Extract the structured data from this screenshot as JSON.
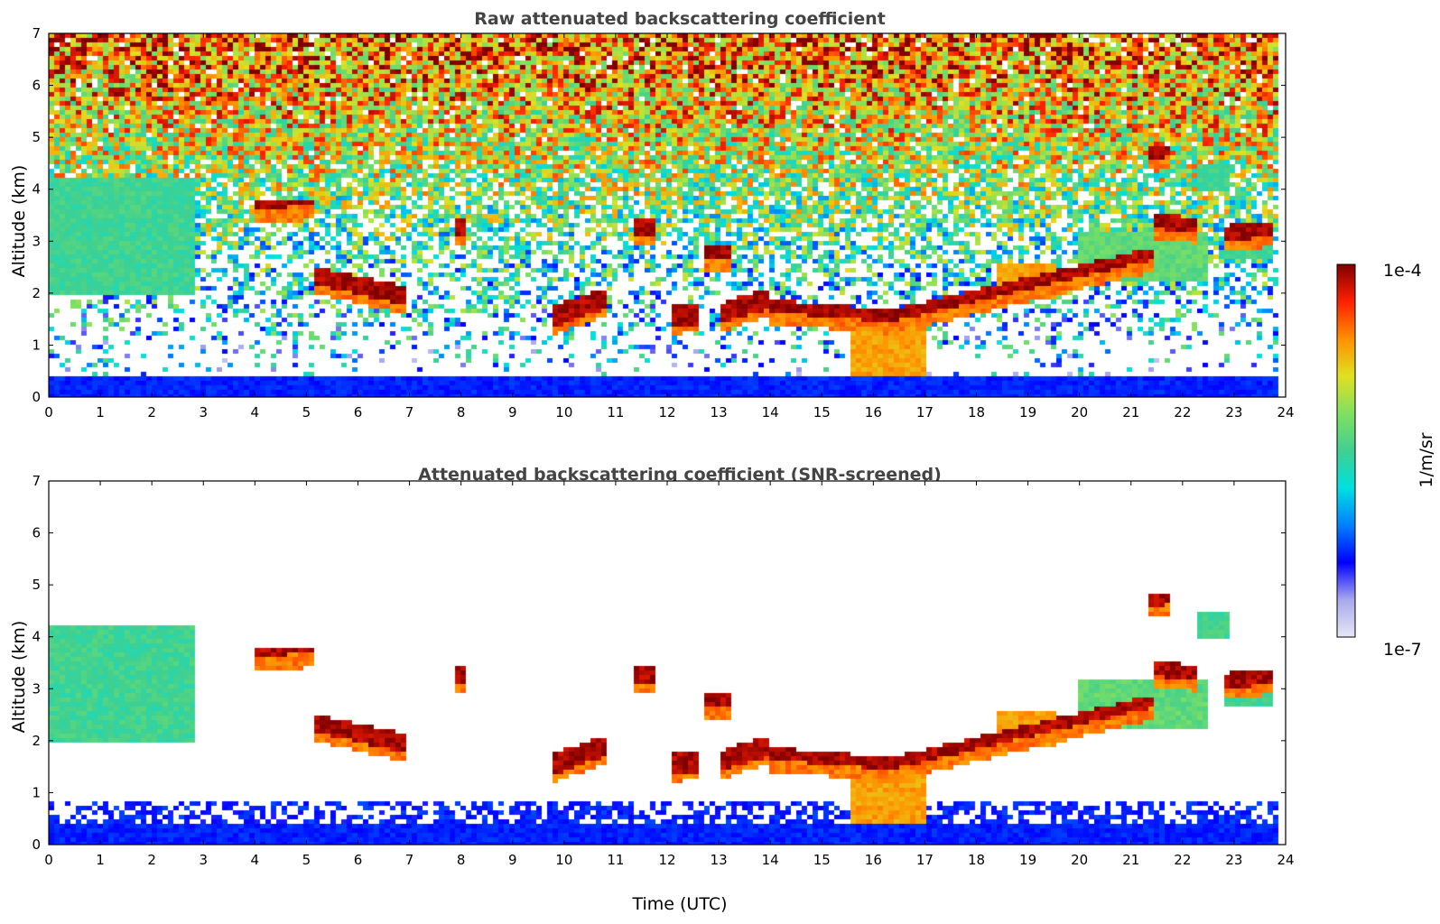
{
  "chart_data": [
    {
      "type": "heatmap",
      "title": "Raw attenuated backscattering coefficient",
      "xlabel": "",
      "ylabel": "Altitude (km)",
      "xlim": [
        0,
        24
      ],
      "ylim": [
        0,
        7
      ],
      "xticks": [
        "0",
        "1",
        "2",
        "3",
        "4",
        "5",
        "6",
        "7",
        "8",
        "9",
        "10",
        "11",
        "12",
        "13",
        "14",
        "15",
        "16",
        "17",
        "18",
        "19",
        "20",
        "21",
        "22",
        "23",
        "24"
      ],
      "yticks": [
        "0",
        "1",
        "2",
        "3",
        "4",
        "5",
        "6",
        "7"
      ],
      "data_end_time": 23.8,
      "features": {
        "surface_layer": {
          "top_km": 0.4,
          "level": 0.05
        },
        "noise": "high-altitude speckle increasing with height",
        "features": [
          {
            "kind": "cloud",
            "start": 4.0,
            "end": 5.1,
            "alt_start": 3.72,
            "alt_end": 3.75,
            "thickness": 0.08
          },
          {
            "kind": "cloud",
            "start": 5.1,
            "end": 6.9,
            "alt_start": 2.35,
            "alt_end": 1.95,
            "thickness": 0.18
          },
          {
            "kind": "cloud",
            "start": 7.9,
            "end": 8.1,
            "alt_start": 3.25,
            "alt_end": 3.25,
            "thickness": 0.18
          },
          {
            "kind": "cloud",
            "start": 9.8,
            "end": 10.8,
            "alt_start": 1.55,
            "alt_end": 1.9,
            "thickness": 0.2
          },
          {
            "kind": "cloud",
            "start": 11.3,
            "end": 11.8,
            "alt_start": 3.25,
            "alt_end": 3.25,
            "thickness": 0.2
          },
          {
            "kind": "cloud",
            "start": 12.1,
            "end": 12.6,
            "alt_start": 1.55,
            "alt_end": 1.6,
            "thickness": 0.2
          },
          {
            "kind": "cloud",
            "start": 12.7,
            "end": 13.2,
            "alt_start": 2.78,
            "alt_end": 2.78,
            "thickness": 0.1
          },
          {
            "kind": "cloud",
            "start": 13.0,
            "end": 14.0,
            "alt_start": 1.6,
            "alt_end": 1.9,
            "thickness": 0.2
          },
          {
            "kind": "cloud",
            "start": 14.0,
            "end": 16.5,
            "alt_start": 1.75,
            "alt_end": 1.55,
            "thickness": 0.12
          },
          {
            "kind": "cloud",
            "start": 16.5,
            "end": 21.4,
            "alt_start": 1.6,
            "alt_end": 2.75,
            "thickness": 0.12
          },
          {
            "kind": "cloud",
            "start": 21.4,
            "end": 22.3,
            "alt_start": 3.4,
            "alt_end": 3.3,
            "thickness": 0.15
          },
          {
            "kind": "cloud",
            "start": 22.8,
            "end": 23.8,
            "alt_start": 3.15,
            "alt_end": 3.25,
            "thickness": 0.15
          },
          {
            "kind": "cloud",
            "start": 21.3,
            "end": 21.8,
            "alt_start": 4.7,
            "alt_end": 4.75,
            "thickness": 0.12
          },
          {
            "kind": "aerosol",
            "start": 0.0,
            "end": 2.8,
            "alt_start": 2.0,
            "alt_end": 4.2,
            "level": 0.5
          },
          {
            "kind": "aerosol",
            "start": 15.6,
            "end": 17.0,
            "alt_start": 0.3,
            "alt_end": 1.6,
            "level": 0.78
          },
          {
            "kind": "aerosol",
            "start": 18.4,
            "end": 19.6,
            "alt_start": 1.9,
            "alt_end": 2.6,
            "level": 0.78
          },
          {
            "kind": "aerosol",
            "start": 20.0,
            "end": 22.5,
            "alt_start": 2.2,
            "alt_end": 3.2,
            "level": 0.55
          },
          {
            "kind": "aerosol",
            "start": 22.8,
            "end": 23.8,
            "alt_start": 2.7,
            "alt_end": 3.1,
            "level": 0.5
          },
          {
            "kind": "aerosol",
            "start": 22.3,
            "end": 22.9,
            "alt_start": 4.0,
            "alt_end": 4.5,
            "level": 0.5
          }
        ]
      }
    },
    {
      "type": "heatmap",
      "title": "Attenuated backscattering coefficient (SNR-screened)",
      "xlabel": "Time (UTC)",
      "ylabel": "Altitude (km)",
      "xlim": [
        0,
        24
      ],
      "ylim": [
        0,
        7
      ],
      "xticks": [
        "0",
        "1",
        "2",
        "3",
        "4",
        "5",
        "6",
        "7",
        "8",
        "9",
        "10",
        "11",
        "12",
        "13",
        "14",
        "15",
        "16",
        "17",
        "18",
        "19",
        "20",
        "21",
        "22",
        "23",
        "24"
      ],
      "yticks": [
        "0",
        "1",
        "2",
        "3",
        "4",
        "5",
        "6",
        "7"
      ],
      "data_end_time": 23.8,
      "screened": true
    }
  ],
  "colorbar": {
    "label": "1/m/sr",
    "min_label": "1e-7",
    "max_label": "1e-4",
    "colors": [
      "#e6e6f5",
      "#a8a8ee",
      "#0000ff",
      "#0080ff",
      "#00e0e0",
      "#40d090",
      "#80e060",
      "#e0e020",
      "#ff9000",
      "#ff2000",
      "#800000"
    ]
  }
}
